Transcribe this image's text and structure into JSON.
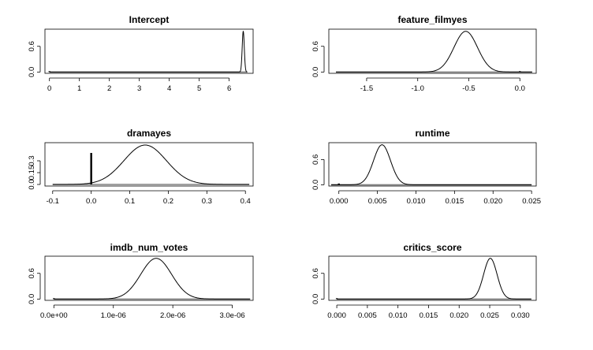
{
  "chart_data": [
    {
      "type": "line",
      "title": "Intercept",
      "xlim": [
        -0.15,
        6.8
      ],
      "ylim": [
        -0.03,
        1.0
      ],
      "xticks": [
        {
          "v": 0,
          "label": "0"
        },
        {
          "v": 1,
          "label": "1"
        },
        {
          "v": 2,
          "label": "2"
        },
        {
          "v": 3,
          "label": "3"
        },
        {
          "v": 4,
          "label": "4"
        },
        {
          "v": 5,
          "label": "5"
        },
        {
          "v": 6,
          "label": "6"
        }
      ],
      "yticks": [
        {
          "v": 0,
          "label": "0.0"
        },
        {
          "v": 0.6,
          "label": "0.6"
        }
      ],
      "density": {
        "mean": 6.47,
        "sd": 0.035,
        "peak": 0.95
      },
      "point_mass": {
        "x": 0,
        "height": 0.02
      },
      "support": [
        0,
        6.6
      ]
    },
    {
      "type": "line",
      "title": "feature_filmyes",
      "xlim": [
        -1.87,
        0.16
      ],
      "ylim": [
        -0.03,
        1.0
      ],
      "xticks": [
        {
          "v": -1.5,
          "label": "-1.5"
        },
        {
          "v": -1.0,
          "label": "-1.0"
        },
        {
          "v": -0.5,
          "label": "-0.5"
        },
        {
          "v": 0.0,
          "label": "0.0"
        }
      ],
      "yticks": [
        {
          "v": 0,
          "label": "0.0"
        },
        {
          "v": 0.6,
          "label": "0.6"
        }
      ],
      "density": {
        "mean": -0.53,
        "sd": 0.115,
        "peak": 0.95
      },
      "point_mass": {
        "x": 0,
        "height": 0.02
      },
      "support": [
        -1.8,
        0.12
      ]
    },
    {
      "type": "line",
      "title": "dramayes",
      "xlim": [
        -0.12,
        0.42
      ],
      "ylim": [
        -0.02,
        0.53
      ],
      "xticks": [
        {
          "v": -0.1,
          "label": "-0.1"
        },
        {
          "v": 0.0,
          "label": "0.0"
        },
        {
          "v": 0.1,
          "label": "0.1"
        },
        {
          "v": 0.2,
          "label": "0.2"
        },
        {
          "v": 0.3,
          "label": "0.3"
        },
        {
          "v": 0.4,
          "label": "0.4"
        }
      ],
      "yticks": [
        {
          "v": 0,
          "label": "0.0"
        },
        {
          "v": 0.15,
          "label": "0.15"
        },
        {
          "v": 0.3,
          "label": "0.3"
        }
      ],
      "density": {
        "mean": 0.14,
        "sd": 0.055,
        "peak": 0.5
      },
      "point_mass": {
        "x": 0,
        "height": 0.4
      },
      "support": [
        -0.1,
        0.41
      ]
    },
    {
      "type": "line",
      "title": "runtime",
      "xlim": [
        -0.0013,
        0.0256
      ],
      "ylim": [
        -0.03,
        1.0
      ],
      "xticks": [
        {
          "v": 0.0,
          "label": "0.000"
        },
        {
          "v": 0.005,
          "label": "0.005"
        },
        {
          "v": 0.01,
          "label": "0.010"
        },
        {
          "v": 0.015,
          "label": "0.015"
        },
        {
          "v": 0.02,
          "label": "0.020"
        },
        {
          "v": 0.025,
          "label": "0.025"
        }
      ],
      "yticks": [
        {
          "v": 0,
          "label": "0.0"
        },
        {
          "v": 0.6,
          "label": "0.6"
        }
      ],
      "density": {
        "mean": 0.0056,
        "sd": 0.0011,
        "peak": 0.95
      },
      "point_mass": {
        "x": 0,
        "height": 0.03
      },
      "support": [
        -0.001,
        0.025
      ]
    },
    {
      "type": "line",
      "title": "imdb_num_votes",
      "xlim": [
        -1.5e-07,
        3.35e-06
      ],
      "ylim": [
        -0.03,
        1.0
      ],
      "xticks": [
        {
          "v": 0,
          "label": "0.0e+00"
        },
        {
          "v": 1e-06,
          "label": "1.0e-06"
        },
        {
          "v": 2e-06,
          "label": "2.0e-06"
        },
        {
          "v": 3e-06,
          "label": "3.0e-06"
        }
      ],
      "yticks": [
        {
          "v": 0,
          "label": "0.0"
        },
        {
          "v": 0.6,
          "label": "0.6"
        }
      ],
      "density": {
        "mean": 1.72e-06,
        "sd": 2.6e-07,
        "peak": 0.95
      },
      "point_mass": {
        "x": 0,
        "height": 0.02
      },
      "support": [
        0,
        3.3e-06
      ]
    },
    {
      "type": "line",
      "title": "critics_score",
      "xlim": [
        -0.0013,
        0.0326
      ],
      "ylim": [
        -0.03,
        1.0
      ],
      "xticks": [
        {
          "v": 0.0,
          "label": "0.000"
        },
        {
          "v": 0.005,
          "label": "0.005"
        },
        {
          "v": 0.01,
          "label": "0.010"
        },
        {
          "v": 0.015,
          "label": "0.015"
        },
        {
          "v": 0.02,
          "label": "0.020"
        },
        {
          "v": 0.025,
          "label": "0.025"
        },
        {
          "v": 0.03,
          "label": "0.030"
        }
      ],
      "yticks": [
        {
          "v": 0,
          "label": "0.0"
        },
        {
          "v": 0.6,
          "label": "0.6"
        }
      ],
      "density": {
        "mean": 0.0251,
        "sd": 0.0011,
        "peak": 0.95
      },
      "point_mass": {
        "x": 0,
        "height": 0.02
      },
      "support": [
        0,
        0.0318
      ]
    }
  ]
}
